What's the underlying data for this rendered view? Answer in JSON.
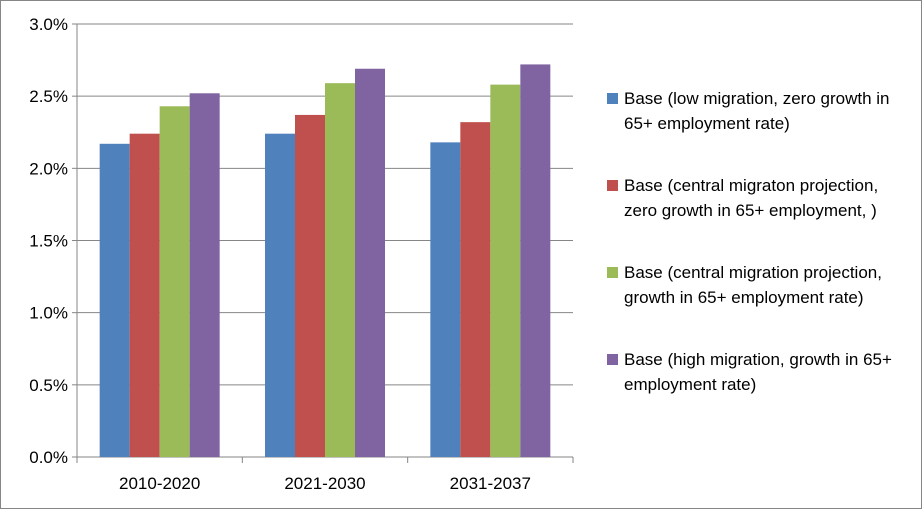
{
  "chart_data": {
    "type": "bar",
    "categories": [
      "2010-2020",
      "2021-2030",
      "2031-2037"
    ],
    "y_tick_labels": [
      "0.0%",
      "0.5%",
      "1.0%",
      "1.5%",
      "2.0%",
      "2.5%",
      "3.0%"
    ],
    "ylim": [
      0,
      3.0
    ],
    "y_unit": "%",
    "grid": true,
    "legend_position": "right",
    "series": [
      {
        "name": "Base (low migration, zero growth in 65+ employment rate)",
        "color": "#4F81BD",
        "values": [
          2.17,
          2.24,
          2.18
        ]
      },
      {
        "name": "Base (central migraton projection, zero growth in 65+ employment, )",
        "color": "#C0504D",
        "values": [
          2.24,
          2.37,
          2.32
        ]
      },
      {
        "name": "Base (central migration projection, growth in 65+ employment rate)",
        "color": "#9BBB59",
        "values": [
          2.43,
          2.59,
          2.58
        ]
      },
      {
        "name": "Base (high migration, growth in 65+ employment rate)",
        "color": "#8064A2",
        "values": [
          2.52,
          2.69,
          2.72
        ]
      }
    ]
  }
}
